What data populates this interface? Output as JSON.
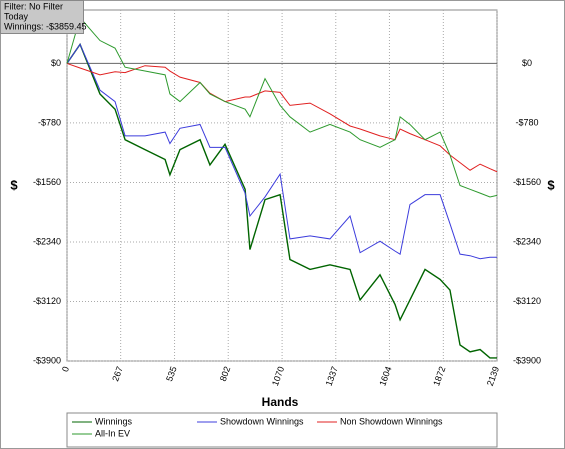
{
  "chart_data": {
    "type": "line",
    "annotations": [
      "Filter: No Filter",
      "Today",
      "Winnings: -$3859.45"
    ],
    "xlabel": "Hands",
    "ylabel": "$",
    "x": [
      0,
      65,
      164,
      239,
      289,
      388,
      488,
      512,
      562,
      662,
      711,
      786,
      886,
      910,
      985,
      1060,
      1109,
      1209,
      1308,
      1408,
      1458,
      1557,
      1632,
      1657,
      1706,
      1781,
      1856,
      1905,
      1955,
      2005,
      2055,
      2104,
      2139
    ],
    "series": [
      {
        "name": "Winnings",
        "color": "#006400",
        "values": [
          0,
          250,
          -400,
          -600,
          -1000,
          -1130,
          -1260,
          -1460,
          -1130,
          -1000,
          -1330,
          -1060,
          -1650,
          -2440,
          -1785,
          -1720,
          -2570,
          -2700,
          -2640,
          -2700,
          -3100,
          -2770,
          -3160,
          -3360,
          -3100,
          -2700,
          -2830,
          -2970,
          -3690,
          -3780,
          -3750,
          -3860,
          -3859.45
        ]
      },
      {
        "name": "Showdown Winnings",
        "color": "#3c3cdc",
        "values": [
          0,
          250,
          -350,
          -500,
          -950,
          -950,
          -900,
          -1050,
          -850,
          -800,
          -1100,
          -1100,
          -1700,
          -2000,
          -1750,
          -1450,
          -2300,
          -2260,
          -2300,
          -2000,
          -2480,
          -2330,
          -2460,
          -2500,
          -1850,
          -1720,
          -1720,
          -2100,
          -2500,
          -2520,
          -2560,
          -2540,
          -2540
        ]
      },
      {
        "name": "Non Showdown Winnings",
        "color": "#e02020",
        "values": [
          0,
          -60,
          -150,
          -110,
          -120,
          -30,
          -50,
          -100,
          -180,
          -250,
          -390,
          -500,
          -440,
          -440,
          -360,
          -380,
          -550,
          -520,
          -660,
          -820,
          -860,
          -950,
          -1000,
          -860,
          -920,
          -1000,
          -1080,
          -1200,
          -1300,
          -1400,
          -1320,
          -1380,
          -1420
        ]
      },
      {
        "name": "All-In EV",
        "color": "#2e9a2e",
        "values": [
          0,
          600,
          300,
          200,
          -50,
          -100,
          -150,
          -400,
          -500,
          -250,
          -400,
          -500,
          -600,
          -700,
          -200,
          -550,
          -700,
          -900,
          -800,
          -900,
          -1000,
          -1100,
          -1000,
          -700,
          -800,
          -1000,
          -900,
          -1200,
          -1600,
          -1650,
          -1700,
          -1750,
          -1730
        ]
      }
    ],
    "xlim": [
      0,
      2139
    ],
    "xticks": [
      0,
      267,
      535,
      802,
      1070,
      1337,
      1604,
      1872,
      2139
    ],
    "ylim": [
      -3900,
      700
    ],
    "yticks": [
      {
        "value": 0,
        "label": "$0"
      },
      {
        "value": -780,
        "label": "-$780"
      },
      {
        "value": -1560,
        "label": "-$1560"
      },
      {
        "value": -2340,
        "label": "-$2340"
      },
      {
        "value": -3120,
        "label": "-$3120"
      },
      {
        "value": -3900,
        "label": "-$3900"
      }
    ],
    "grid": true
  }
}
